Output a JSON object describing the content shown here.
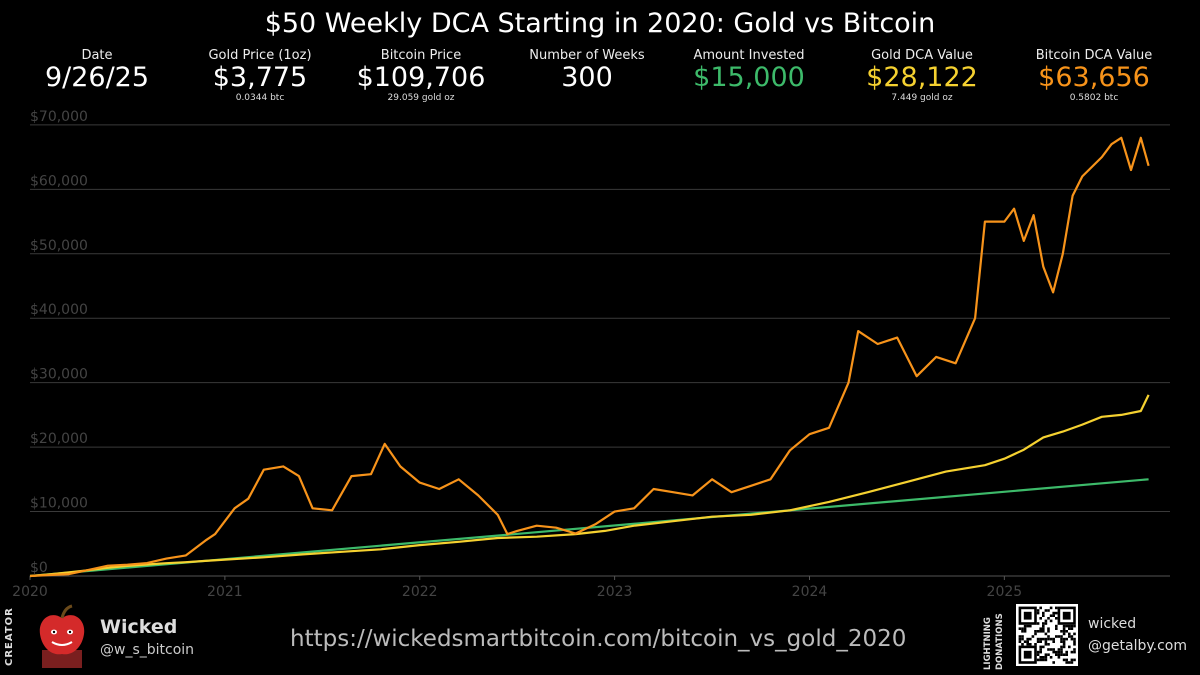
{
  "title": "$50 Weekly DCA Starting in 2020: Gold vs Bitcoin",
  "stats": [
    {
      "label": "Date",
      "value": "9/26/25",
      "sub": "",
      "color": "#ffffff"
    },
    {
      "label": "Gold Price (1oz)",
      "value": "$3,775",
      "sub": "0.0344 btc",
      "color": "#ffffff"
    },
    {
      "label": "Bitcoin Price",
      "value": "$109,706",
      "sub": "29.059 gold oz",
      "color": "#ffffff"
    },
    {
      "label": "Number of Weeks",
      "value": "300",
      "sub": "",
      "color": "#ffffff"
    },
    {
      "label": "Amount Invested",
      "value": "$15,000",
      "sub": "",
      "color": "#3dba6a"
    },
    {
      "label": "Gold DCA Value",
      "value": "$28,122",
      "sub": "7.449 gold oz",
      "color": "#f5d130"
    },
    {
      "label": "Bitcoin DCA Value",
      "value": "$63,656",
      "sub": "0.5802 btc",
      "color": "#f7931a"
    }
  ],
  "chart_data": {
    "type": "line",
    "xlim": [
      2020.0,
      2025.85
    ],
    "ylim": [
      0,
      72000
    ],
    "xticks": [
      2020,
      2021,
      2022,
      2023,
      2024,
      2025
    ],
    "xtick_labels": [
      "2020",
      "2021",
      "2022",
      "2023",
      "2024",
      "2025"
    ],
    "yticks": [
      0,
      10000,
      20000,
      30000,
      40000,
      50000,
      60000,
      70000
    ],
    "ytick_labels": [
      "$0",
      "$10,000",
      "$20,000",
      "$30,000",
      "$40,000",
      "$50,000",
      "$60,000",
      "$70,000"
    ],
    "grid": true,
    "series": [
      {
        "name": "Amount Invested",
        "color": "#3dba6a",
        "x": [
          2020.0,
          2025.74
        ],
        "y": [
          0,
          15000
        ]
      },
      {
        "name": "Gold DCA Value",
        "color": "#f5d130",
        "x": [
          2020.0,
          2020.1,
          2020.2,
          2020.3,
          2020.4,
          2020.5,
          2020.6,
          2020.7,
          2020.8,
          2020.9,
          2021.0,
          2021.2,
          2021.4,
          2021.6,
          2021.8,
          2022.0,
          2022.2,
          2022.4,
          2022.6,
          2022.8,
          2022.95,
          2023.1,
          2023.3,
          2023.5,
          2023.7,
          2023.9,
          2024.1,
          2024.3,
          2024.5,
          2024.7,
          2024.9,
          2025.0,
          2025.1,
          2025.2,
          2025.3,
          2025.4,
          2025.5,
          2025.6,
          2025.7,
          2025.74
        ],
        "y": [
          0,
          260,
          560,
          900,
          1280,
          1560,
          1780,
          1980,
          2140,
          2350,
          2550,
          2900,
          3350,
          3750,
          4150,
          4800,
          5300,
          5900,
          6100,
          6500,
          7000,
          7800,
          8500,
          9200,
          9500,
          10200,
          11500,
          13000,
          14600,
          16200,
          17200,
          18200,
          19600,
          21500,
          22400,
          23500,
          24700,
          25000,
          25600,
          28100
        ]
      },
      {
        "name": "Bitcoin DCA Value",
        "color": "#f7931a",
        "x": [
          2020.0,
          2020.1,
          2020.2,
          2020.3,
          2020.4,
          2020.5,
          2020.6,
          2020.7,
          2020.8,
          2020.9,
          2020.95,
          2021.05,
          2021.12,
          2021.2,
          2021.3,
          2021.38,
          2021.45,
          2021.55,
          2021.65,
          2021.75,
          2021.82,
          2021.9,
          2022.0,
          2022.1,
          2022.2,
          2022.3,
          2022.4,
          2022.45,
          2022.5,
          2022.6,
          2022.7,
          2022.8,
          2022.9,
          2023.0,
          2023.1,
          2023.2,
          2023.3,
          2023.4,
          2023.5,
          2023.6,
          2023.7,
          2023.8,
          2023.9,
          2024.0,
          2024.1,
          2024.2,
          2024.25,
          2024.35,
          2024.45,
          2024.55,
          2024.65,
          2024.75,
          2024.85,
          2024.9,
          2025.0,
          2025.05,
          2025.1,
          2025.15,
          2025.2,
          2025.25,
          2025.3,
          2025.35,
          2025.4,
          2025.5,
          2025.55,
          2025.6,
          2025.65,
          2025.7,
          2025.74
        ],
        "y": [
          0,
          150,
          300,
          950,
          1600,
          1750,
          2000,
          2700,
          3200,
          5500,
          6500,
          10500,
          12000,
          16500,
          17000,
          15500,
          10500,
          10200,
          15500,
          15800,
          20500,
          17000,
          14500,
          13500,
          15000,
          12500,
          9500,
          6500,
          7000,
          7800,
          7500,
          6600,
          8000,
          10000,
          10500,
          13500,
          13000,
          12500,
          15000,
          13000,
          14000,
          15000,
          19500,
          22000,
          23000,
          30000,
          38000,
          36000,
          37000,
          31000,
          34000,
          33000,
          40000,
          55000,
          55000,
          57000,
          52000,
          56000,
          48000,
          44000,
          50000,
          59000,
          62000,
          65000,
          67000,
          68000,
          63000,
          68000,
          63656
        ]
      }
    ]
  },
  "footer": {
    "creator_tag": "CREATOR",
    "creator_name": "Wicked",
    "creator_handle": "@w_s_bitcoin",
    "url": "https://wickedsmartbitcoin.com/bitcoin_vs_gold_2020",
    "lightning_tag_line1": "LIGHTNING",
    "lightning_tag_line2": "DONATIONS",
    "donation_name": "wicked",
    "donation_handle": "@getalby.com"
  }
}
